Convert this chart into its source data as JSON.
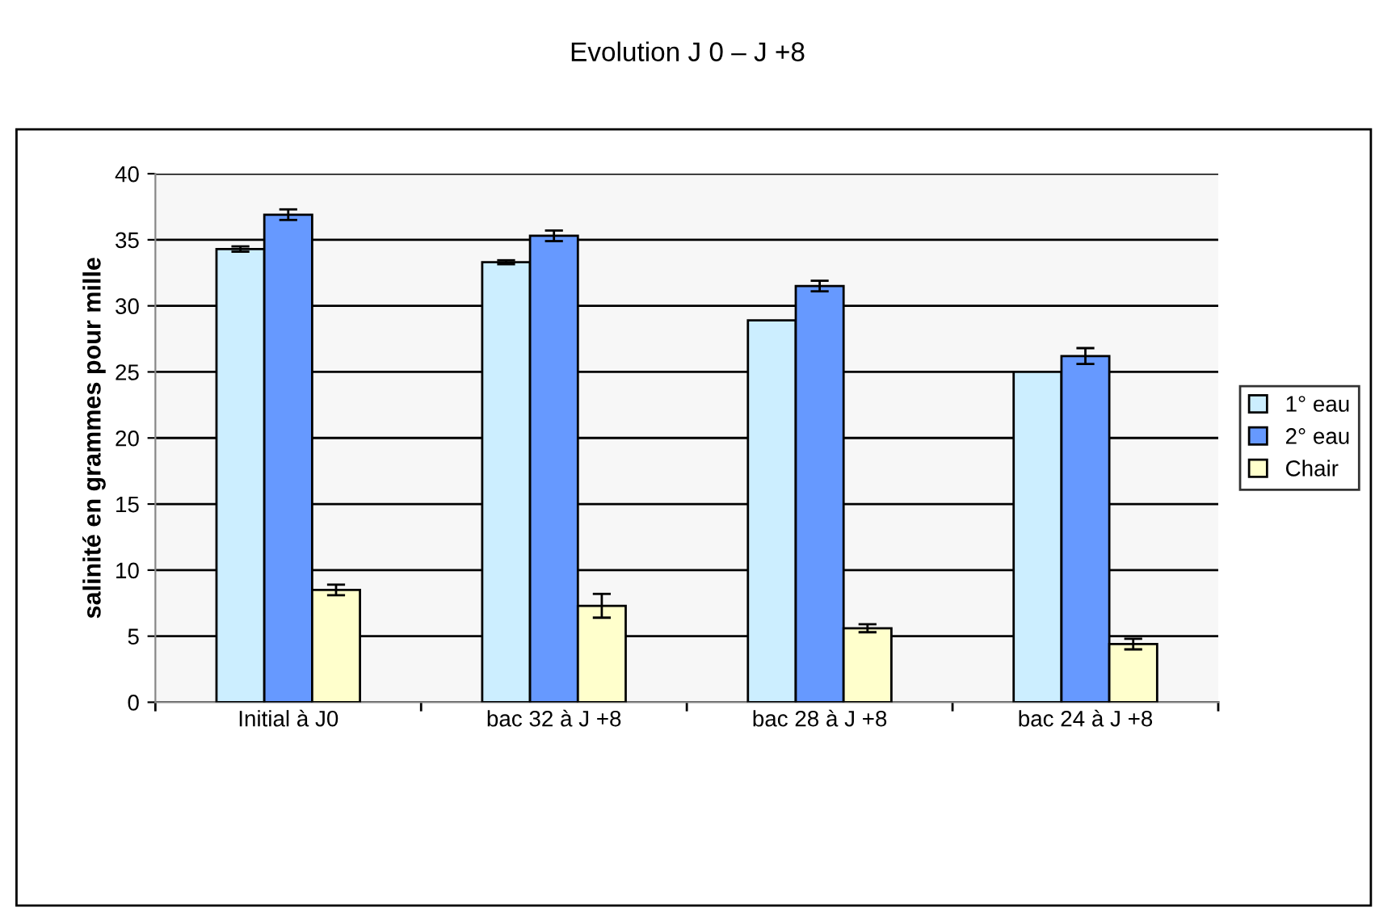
{
  "chart_data": {
    "type": "bar",
    "title": "Evolution J 0 – J +8",
    "ylabel": "salinité en grammes pour mille",
    "categories": [
      "Initial à J0",
      "bac 32 à J +8",
      "bac 28 à J +8",
      "bac 24 à J +8"
    ],
    "series": [
      {
        "name": "1° eau",
        "color": "#cceeff",
        "values": [
          34.3,
          33.3,
          28.9,
          25.0
        ],
        "errors": [
          0.2,
          0.15,
          null,
          null
        ]
      },
      {
        "name": "2° eau",
        "color": "#6699ff",
        "values": [
          36.9,
          35.3,
          31.5,
          26.2
        ],
        "errors": [
          0.4,
          0.4,
          0.4,
          0.6
        ]
      },
      {
        "name": "Chair",
        "color": "#ffffcc",
        "values": [
          8.5,
          7.3,
          5.6,
          4.4
        ],
        "errors": [
          0.4,
          0.9,
          0.3,
          0.4
        ]
      }
    ],
    "ylim": [
      0,
      40
    ],
    "yticks": [
      0,
      5,
      10,
      15,
      20,
      25,
      30,
      35,
      40
    ],
    "grid": "y",
    "legend": "right"
  }
}
